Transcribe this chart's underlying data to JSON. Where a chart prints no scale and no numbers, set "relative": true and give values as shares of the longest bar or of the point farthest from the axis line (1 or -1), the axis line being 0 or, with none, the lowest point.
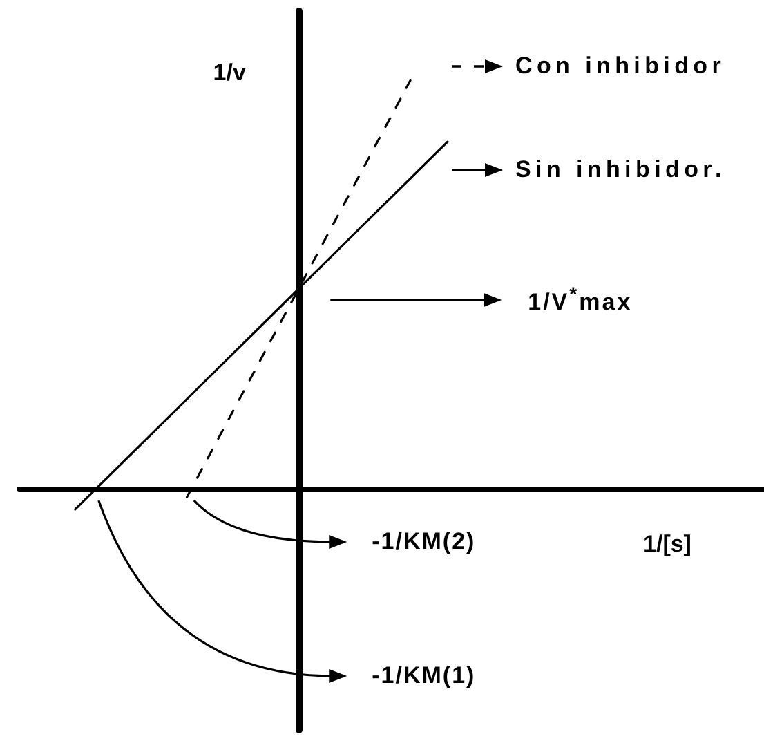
{
  "chart_data": {
    "type": "line",
    "relative": true,
    "ylabel": "1/v",
    "xlabel": "1/[s]",
    "legend": "top right",
    "categories": [
      null,
      null,
      null,
      null,
      null,
      null,
      null,
      null,
      null,
      null,
      null,
      null,
      null,
      null,
      null,
      null,
      null,
      null,
      null,
      null
    ],
    "series": [
      {
        "name": "Con inhibidor",
        "color": "#000000",
        "line_style": "dashed",
        "values": [
          null,
          null,
          null,
          null,
          -0.02,
          0.15,
          0.32,
          0.49,
          0.66,
          0.83,
          1.0,
          null,
          null,
          null,
          null,
          null,
          null,
          null,
          null,
          null
        ]
      },
      {
        "name": "Sin inhibidor.",
        "color": "#000000",
        "line_style": "solid",
        "values": [
          null,
          -0.05,
          0.04,
          0.13,
          0.22,
          0.31,
          0.4,
          0.49,
          0.58,
          0.67,
          0.76,
          0.85,
          null,
          null,
          null,
          null,
          null,
          null,
          null,
          null
        ]
      }
    ],
    "annotations": [
      "1/V$^{*}$max",
      "-1/KM(2)",
      "-1/KM(1)"
    ]
  }
}
